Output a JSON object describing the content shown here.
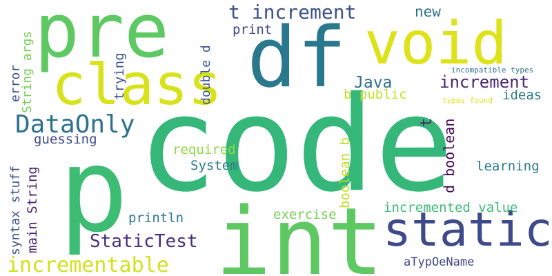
{
  "words": [
    {
      "text": "code",
      "color": "#35b779"
    },
    {
      "text": "p",
      "color": "#3dbc74"
    },
    {
      "text": "int",
      "color": "#5ec962"
    },
    {
      "text": "df",
      "color": "#2a788e"
    },
    {
      "text": "pre",
      "color": "#5ec962"
    },
    {
      "text": "void",
      "color": "#dde318"
    },
    {
      "text": "class",
      "color": "#d8e219"
    },
    {
      "text": "static",
      "color": "#3e4a89"
    },
    {
      "text": "t increment",
      "color": "#3b528b"
    },
    {
      "text": "DataOnly",
      "color": "#2c728e"
    },
    {
      "text": "incrementable",
      "color": "#d2e21b"
    },
    {
      "text": "StaticTest",
      "color": "#472d7b"
    },
    {
      "text": "increment",
      "color": "#482677"
    },
    {
      "text": "Java",
      "color": "#2d708e"
    },
    {
      "text": "new",
      "color": "#2c728e"
    },
    {
      "text": "print",
      "color": "#3e4a89"
    },
    {
      "text": "ideas",
      "color": "#2a7b8e"
    },
    {
      "text": "b public",
      "color": "#c2df23"
    },
    {
      "text": "incompatible types",
      "color": "#2c738e"
    },
    {
      "text": "types found",
      "color": "#e0e318"
    },
    {
      "text": "required",
      "color": "#90d743"
    },
    {
      "text": "System",
      "color": "#2a7b8e"
    },
    {
      "text": "guessing",
      "color": "#3e4a89"
    },
    {
      "text": "learning",
      "color": "#29798e"
    },
    {
      "text": "exercise",
      "color": "#75d054"
    },
    {
      "text": "incremented value",
      "color": "#3cbc75"
    },
    {
      "text": "println",
      "color": "#2b758e"
    },
    {
      "text": "aTypOeName",
      "color": "#3e4a89"
    },
    {
      "text": "syntax stuff",
      "color": "#3b528b"
    },
    {
      "text": "main String",
      "color": "#481f70"
    },
    {
      "text": "error",
      "color": "#3d4d8a"
    },
    {
      "text": "String args",
      "color": "#75d054"
    },
    {
      "text": "trying",
      "color": "#3b528b"
    },
    {
      "text": "double d",
      "color": "#3a548c"
    },
    {
      "text": "boolean b",
      "color": "#c2df23"
    },
    {
      "text": "t",
      "color": "#482173"
    },
    {
      "text": "d boolean",
      "color": "#450559"
    }
  ]
}
